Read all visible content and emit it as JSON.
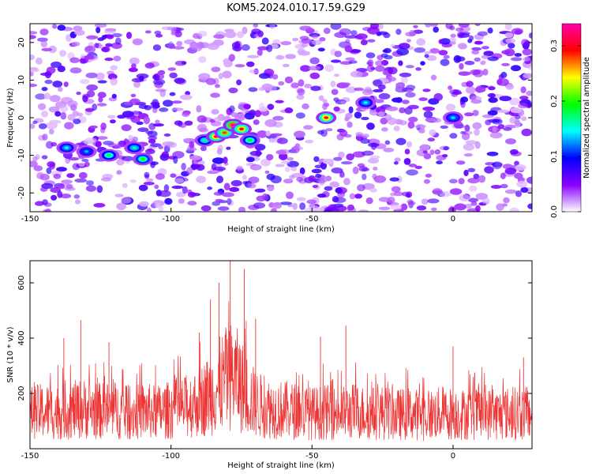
{
  "figure": {
    "title": "KOM5.2024.010.17.59.G29"
  },
  "chart_data": [
    {
      "type": "heatmap",
      "xlabel": "Height of straight line (km)",
      "ylabel": "Frequency (Hz)",
      "xlim": [
        -150,
        28
      ],
      "ylim": [
        -25,
        25
      ],
      "xticks": [
        -150,
        -100,
        -50,
        0
      ],
      "yticks": [
        -20,
        -10,
        0,
        10,
        20
      ],
      "colorbar": {
        "label": "Normalized spectral amplitude",
        "range": [
          0,
          0.34
        ],
        "ticks": [
          0.0,
          0.1,
          0.2,
          0.3
        ],
        "tick_labels": [
          "0.0",
          "0.1",
          "0.2",
          "0.3"
        ],
        "colormap": [
          "#ffffff",
          "#8a00ff",
          "#0000ff",
          "#00ffff",
          "#00ff00",
          "#ffff00",
          "#ff0000",
          "#ff00aa"
        ]
      },
      "hotspots": [
        {
          "x": -137,
          "y": -8,
          "value": 0.12
        },
        {
          "x": -130,
          "y": -9,
          "value": 0.1
        },
        {
          "x": -122,
          "y": -10,
          "value": 0.15
        },
        {
          "x": -113,
          "y": -8,
          "value": 0.13
        },
        {
          "x": -110,
          "y": -11,
          "value": 0.17
        },
        {
          "x": -88,
          "y": -6,
          "value": 0.14
        },
        {
          "x": -84,
          "y": -5,
          "value": 0.29
        },
        {
          "x": -81,
          "y": -4,
          "value": 0.25
        },
        {
          "x": -78,
          "y": -2,
          "value": 0.32
        },
        {
          "x": -75,
          "y": -3,
          "value": 0.27
        },
        {
          "x": -72,
          "y": -6,
          "value": 0.16
        },
        {
          "x": -45,
          "y": 0,
          "value": 0.28
        },
        {
          "x": -31,
          "y": 4,
          "value": 0.12
        },
        {
          "x": 0,
          "y": 0,
          "value": 0.11
        }
      ]
    },
    {
      "type": "line",
      "xlabel": "Height of straight line (km)",
      "ylabel": "SNR (10 * v/v)",
      "xlim": [
        -150,
        28
      ],
      "ylim": [
        0,
        680
      ],
      "xticks": [
        -150,
        -100,
        -50,
        0
      ],
      "yticks": [
        200,
        400,
        600
      ],
      "series": [
        {
          "color": "#ee3333",
          "x": [
            -150,
            -145,
            -140,
            -135,
            -130,
            -125,
            -120,
            -115,
            -110,
            -105,
            -100,
            -95,
            -90,
            -85,
            -82,
            -80,
            -78,
            -76,
            -73,
            -70,
            -65,
            -60,
            -55,
            -50,
            -45,
            -40,
            -35,
            -30,
            -25,
            -20,
            -15,
            -10,
            -5,
            0,
            5,
            10,
            15,
            20,
            25,
            28
          ],
          "y": [
            150,
            160,
            155,
            165,
            170,
            160,
            165,
            150,
            160,
            155,
            165,
            175,
            200,
            240,
            280,
            300,
            310,
            285,
            230,
            190,
            170,
            165,
            160,
            150,
            155,
            150,
            160,
            150,
            155,
            145,
            150,
            140,
            150,
            150,
            145,
            150,
            145,
            150,
            150,
            145
          ],
          "peaks": [
            {
              "x": -138,
              "y": 400
            },
            {
              "x": -132,
              "y": 465
            },
            {
              "x": -122,
              "y": 385
            },
            {
              "x": -90,
              "y": 420
            },
            {
              "x": -86,
              "y": 540
            },
            {
              "x": -83,
              "y": 600
            },
            {
              "x": -79,
              "y": 680
            },
            {
              "x": -74,
              "y": 650
            },
            {
              "x": -70,
              "y": 470
            },
            {
              "x": -47,
              "y": 405
            },
            {
              "x": -38,
              "y": 445
            },
            {
              "x": 0,
              "y": 370
            },
            {
              "x": 25,
              "y": 330
            }
          ]
        }
      ]
    }
  ]
}
